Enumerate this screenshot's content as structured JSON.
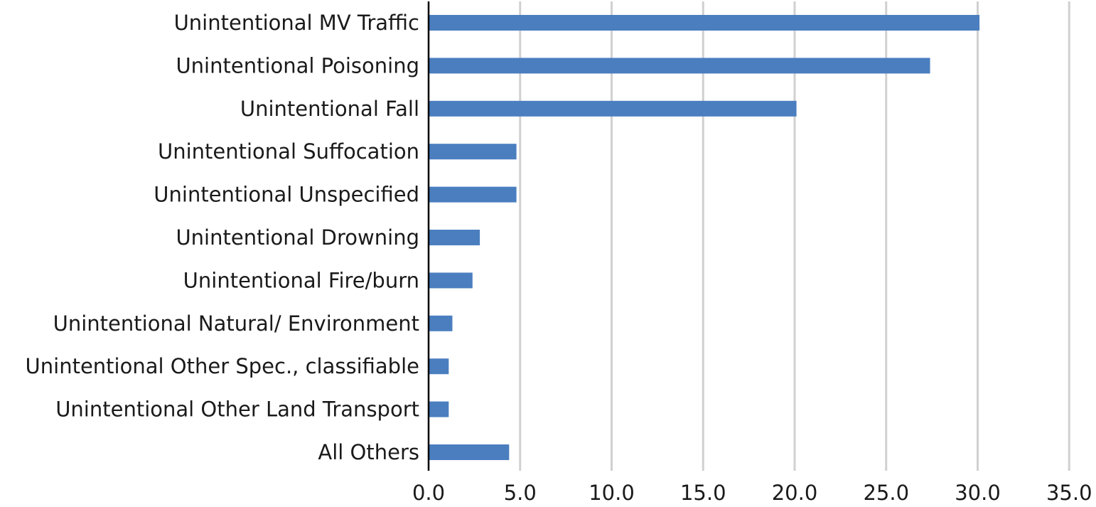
{
  "chart_data": {
    "type": "bar",
    "orientation": "horizontal",
    "title": "",
    "xlabel": "",
    "ylabel": "",
    "categories": [
      "Unintentional MV Traffic",
      "Unintentional Poisoning",
      "Unintentional Fall",
      "Unintentional Suffocation",
      "Unintentional Unspecified",
      "Unintentional Drowning",
      "Unintentional Fire/burn",
      "Unintentional Natural/ Environment",
      "Unintentional Other Spec., classifiable",
      "Unintentional Other Land Transport",
      "All Others"
    ],
    "values": [
      30.1,
      27.4,
      20.1,
      4.8,
      4.8,
      2.8,
      2.4,
      1.3,
      1.1,
      1.1,
      4.4
    ],
    "xlim": [
      0,
      35
    ],
    "xticks": [
      "0.0",
      "5.0",
      "10.0",
      "15.0",
      "20.0",
      "25.0",
      "30.0",
      "35.0"
    ],
    "grid": "vertical",
    "legend": "none",
    "bar_color": "#4a7ebf"
  }
}
